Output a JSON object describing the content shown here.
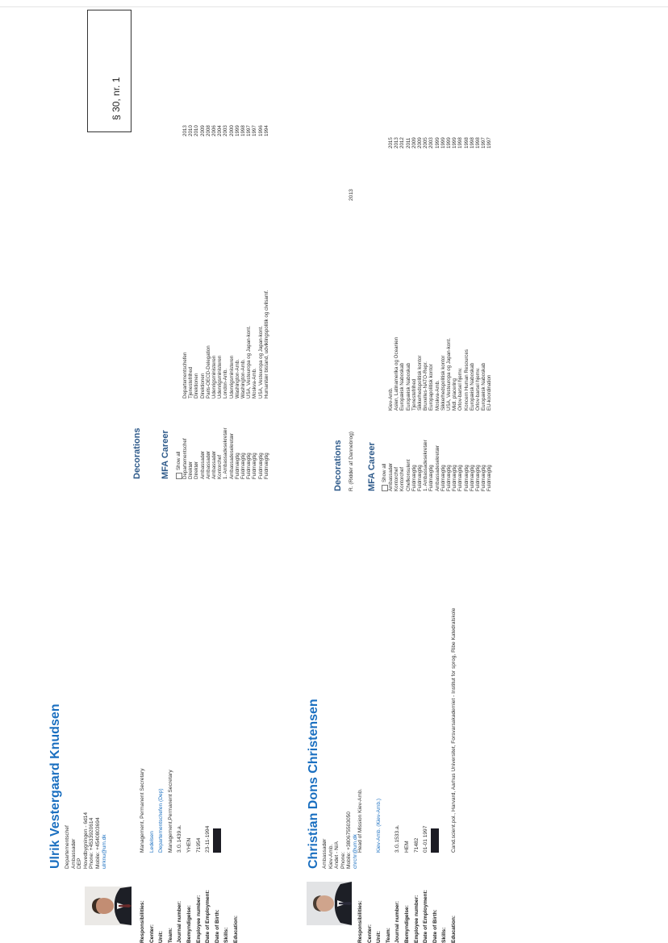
{
  "stamp": "§ 30, nr. 1",
  "persons": [
    {
      "name": "Ulrik Vestergaard Knudsen",
      "contact": [
        "Departementschef",
        "Ambassadør",
        "DEP",
        "Hovedbygningen - 6d14",
        "Phone: +4533920614",
        "Mobile: +4540803694",
        "ulrknu@um.dk"
      ],
      "fields": [
        {
          "label": "Responsibilities:",
          "value": "Management, Permanent Secretary",
          "link": false,
          "redacted": false
        },
        {
          "label": "Center:",
          "value": "Ledelsen",
          "link": true,
          "redacted": false
        },
        {
          "label": "Unit:",
          "value": "Departementschefen (Dep)",
          "link": true,
          "redacted": false
        },
        {
          "label": "Team:",
          "value": "Management,Permanent Secretary",
          "link": false,
          "redacted": false
        },
        {
          "label": "Journal number:",
          "value": "3.G.1439.a.",
          "link": false,
          "redacted": false
        },
        {
          "label": "Bemyndigelse:",
          "value": "YHEN",
          "link": false,
          "redacted": false
        },
        {
          "label": "Employee number:",
          "value": "71954",
          "link": false,
          "redacted": false
        },
        {
          "label": "Date of Employment:",
          "value": "23-11-1994",
          "link": false,
          "redacted": false
        },
        {
          "label": "Date of Birth:",
          "value": "",
          "link": false,
          "redacted": true
        },
        {
          "label": "Skills:",
          "value": "",
          "link": false,
          "redacted": false
        },
        {
          "label": "Education:",
          "value": "",
          "link": false,
          "redacted": false
        }
      ],
      "decorations_heading": "Decorations",
      "decorations": [],
      "career_heading": "MFA Career",
      "show_all": "Show all",
      "career": [
        {
          "title": "Departementschef",
          "place": "Departementschefen",
          "year": "2013"
        },
        {
          "title": "Direktør",
          "place": "Tjenestefrihed",
          "year": "2010"
        },
        {
          "title": "Direktør",
          "place": "Direktionen",
          "year": "2010"
        },
        {
          "title": "Ambassadør",
          "place": "Direktionen",
          "year": "2009"
        },
        {
          "title": "Ambassadør",
          "place": "Paris-OECD-Delegation",
          "year": "2008"
        },
        {
          "title": "Ambassadør",
          "place": "Udenrigsministeren",
          "year": "2006"
        },
        {
          "title": "Kontorchef",
          "place": "Udenrigsministeren",
          "year": "2004"
        },
        {
          "title": "1. Ambassadesekretær",
          "place": "London-Amb.",
          "year": "2003"
        },
        {
          "title": "Ambassadesekretær",
          "place": "Udenrigsministeren",
          "year": "2000"
        },
        {
          "title": "Fuldmægtig",
          "place": "Washington-Amb.",
          "year": "1999"
        },
        {
          "title": "Fuldmægtig",
          "place": "Washington-Amb.",
          "year": "1998"
        },
        {
          "title": "Fuldmægtig",
          "place": "USA, Vesteuropa og Japan-kont.",
          "year": "1997"
        },
        {
          "title": "Fuldmægtig",
          "place": "Moskva-Amb.",
          "year": "1997"
        },
        {
          "title": "Fuldmægtig",
          "place": "USA, Vesteuropa og Japan-kont.",
          "year": "1996"
        },
        {
          "title": "Fuldmægtig",
          "place": "Humanitær bistand, udviklingspolitik og civilsamf.",
          "year": "1994"
        }
      ]
    },
    {
      "name": "Christian Dons Christensen",
      "contact": [
        "Ambassadør",
        "Kiev-Amb.",
        "Andet - N/A",
        "Phone:",
        "Mobile: +380675503050",
        "chrchr@um.dk"
      ],
      "fields": [
        {
          "label": "Responsibilities:",
          "value": "Head of Mission Kiev-Amb.",
          "link": false,
          "redacted": false
        },
        {
          "label": "Center:",
          "value": "",
          "link": false,
          "redacted": false
        },
        {
          "label": "Unit:",
          "value": "Kiev-Amb. (Kiev-Amb.)",
          "link": true,
          "redacted": false
        },
        {
          "label": "Team:",
          "value": "",
          "link": false,
          "redacted": false
        },
        {
          "label": "Journal number:",
          "value": "3.G.1533.a.",
          "link": false,
          "redacted": false
        },
        {
          "label": "Bemyndigelse:",
          "value": "HEM",
          "link": false,
          "redacted": false
        },
        {
          "label": "Employee number:",
          "value": "71482",
          "link": false,
          "redacted": false
        },
        {
          "label": "Date of Employment:",
          "value": "01-01 1997",
          "link": false,
          "redacted": false
        },
        {
          "label": "Date of Birth:",
          "value": "",
          "link": false,
          "redacted": true
        },
        {
          "label": "Skills:",
          "value": "",
          "link": false,
          "redacted": false
        },
        {
          "label": "Education:",
          "value": "Cand.scient.pol., Harvard, Aarhus Universitet, Forsvarsakademiet - Institut for sprog, Ribe Katedralskole",
          "link": false,
          "redacted": false
        }
      ],
      "decorations_heading": "Decorations",
      "decorations": [
        {
          "text": "R. (Ridder af Dannebrog)",
          "year": "2013"
        }
      ],
      "career_heading": "MFA Career",
      "show_all": "Show all",
      "career": [
        {
          "title": "Ambassadør",
          "place": "Kiev-Amb.",
          "year": "2015"
        },
        {
          "title": "Kontorchef",
          "place": "Asien, Latinamerika og Oceanien",
          "year": "2013"
        },
        {
          "title": "Kontorchef",
          "place": "Europæisk Naboskab",
          "year": "2012"
        },
        {
          "title": "Chefkonsulent",
          "place": "Europæisk Naboskab",
          "year": "2011"
        },
        {
          "title": "Fuldmægtig",
          "place": "Tjenestefrihed",
          "year": "2009"
        },
        {
          "title": "Fuldmægtig",
          "place": "Sikkerhedspolitisk kontor",
          "year": "2009"
        },
        {
          "title": "1. Ambassadesekretær",
          "place": "Bruxelles-NATO-Repr.",
          "year": "2005"
        },
        {
          "title": "Fuldmægtig",
          "place": "Europapolitisk kontor",
          "year": "2003"
        },
        {
          "title": "Ambassadesekretær",
          "place": "Moskva-Amb.",
          "year": "1999"
        },
        {
          "title": "Fuldmægtig",
          "place": "Sikkerhedspolitisk kontor",
          "year": "1999"
        },
        {
          "title": "Fuldmægtig",
          "place": "USA, Vesteuropa og Japan-kont.",
          "year": "1999"
        },
        {
          "title": "Fuldmægtig",
          "place": "Midl. placering",
          "year": "1999"
        },
        {
          "title": "Fuldmægtig",
          "place": "Orlov-barsel hjemv.",
          "year": "1998"
        },
        {
          "title": "Fuldmægtig",
          "place": "Koncern Human Resources",
          "year": "1998"
        },
        {
          "title": "Fuldmægtig",
          "place": "Europæisk Naboskab",
          "year": "1998"
        },
        {
          "title": "Fuldmægtig",
          "place": "Orlov-barsel hjemv.",
          "year": "1998"
        },
        {
          "title": "Fuldmægtig",
          "place": "Europæisk Naboskab",
          "year": "1997"
        },
        {
          "title": "Fuldmægtig",
          "place": "EU-koordination",
          "year": "1997"
        }
      ]
    }
  ]
}
